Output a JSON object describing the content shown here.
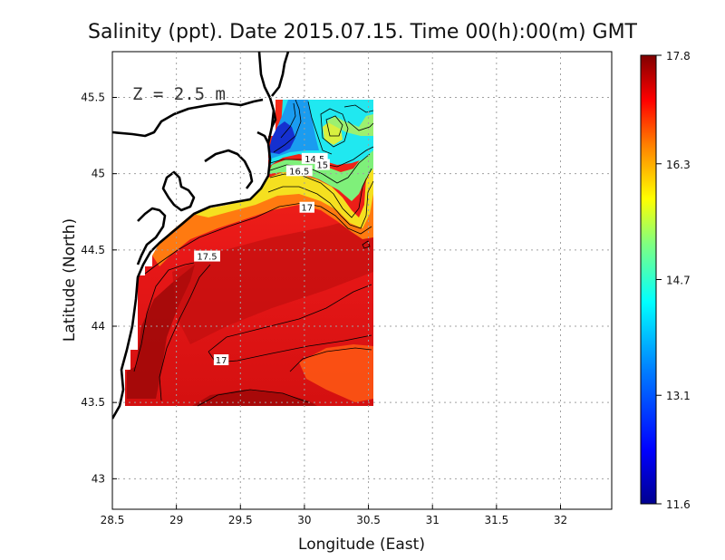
{
  "title": "Salinity (ppt). Date 2015.07.15. Time 00(h):00(m) GMT",
  "depth_label": "Z = 2.5 m",
  "chart_data": {
    "type": "heatmap",
    "title": "Salinity (ppt). Date 2015.07.15. Time 00(h):00(m) GMT",
    "xlabel": "Longitude (East)",
    "ylabel": "Latitude (North)",
    "xlim": [
      28.5,
      32.4
    ],
    "ylim": [
      42.8,
      45.8
    ],
    "grid": true,
    "xticks": [
      28.5,
      29,
      29.5,
      30,
      30.5,
      31,
      31.5,
      32
    ],
    "xtick_labels": [
      "28.5",
      "29",
      "29.5",
      "30",
      "30.5",
      "31",
      "31.5",
      "32"
    ],
    "yticks": [
      43,
      43.5,
      44,
      44.5,
      45,
      45.5
    ],
    "ytick_labels": [
      "43",
      "43.5",
      "44",
      "44.5",
      "45",
      "45.5"
    ],
    "colorbar": {
      "min": 11.6,
      "max": 17.8,
      "tick_values": [
        17.8,
        16.3,
        14.7,
        13.1,
        11.6
      ],
      "tick_labels": [
        "17.8",
        "16.3",
        "14.7",
        "13.1",
        "11.6"
      ],
      "colormap": "jet",
      "colors": [
        "#00008f",
        "#0000ff",
        "#0080ff",
        "#00ffff",
        "#80ff80",
        "#ffff00",
        "#ff8000",
        "#ff0000",
        "#800000"
      ]
    },
    "contour_labels": [
      {
        "text": "14.5",
        "lon": 30.08,
        "lat": 45.1
      },
      {
        "text": "15",
        "lon": 30.14,
        "lat": 45.06
      },
      {
        "text": "16.5",
        "lon": 29.96,
        "lat": 45.02
      },
      {
        "text": "17",
        "lon": 30.02,
        "lat": 44.78
      },
      {
        "text": "17.5",
        "lon": 29.24,
        "lat": 44.46
      },
      {
        "text": "17",
        "lon": 29.35,
        "lat": 43.78
      }
    ]
  }
}
